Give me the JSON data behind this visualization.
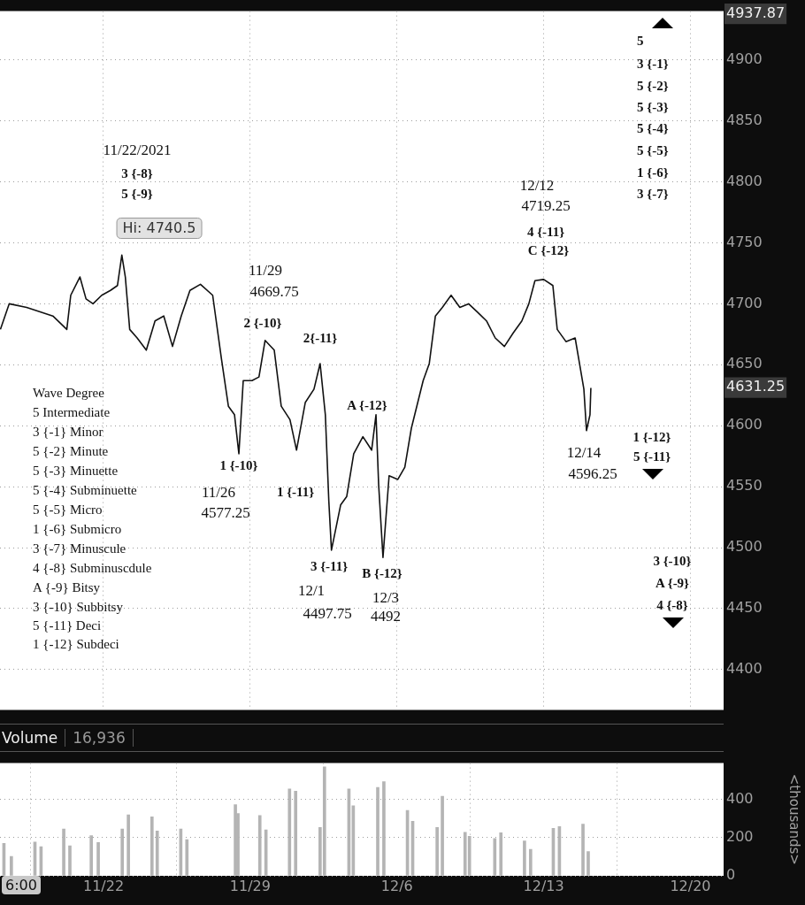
{
  "chart_data": [
    {
      "type": "line",
      "tick_labels": "y",
      "grid": true,
      "legend": false,
      "xlim": [
        "2021-11-17T01:30",
        "2021-12-21T14:00"
      ],
      "xticks": [
        {
          "value": "2021-11-22",
          "label": null
        },
        {
          "value": "2021-11-29",
          "label": null
        },
        {
          "value": "2021-12-06",
          "label": null
        },
        {
          "value": "2021-12-13",
          "label": null
        },
        {
          "value": "2021-12-20",
          "label": null
        }
      ],
      "ylim": [
        4367,
        4940
      ],
      "yticks": [
        4400,
        4450,
        4500,
        4550,
        4600,
        4650,
        4700,
        4750,
        4800,
        4850,
        4900,
        {
          "value": 4937.87,
          "label": "4937.87"
        },
        {
          "value": 4631.25,
          "label": "4631.25"
        }
      ],
      "series": [
        {
          "color": "#111111",
          "x": [
            "2021-11-17T02:00",
            "2021-11-17T12:00",
            "2021-11-18T08:00",
            "2021-11-19T14:00",
            "2021-11-20T06:00",
            "2021-11-20T10:30",
            "2021-11-20T21:00",
            "2021-11-21T04:00",
            "2021-11-21T12:00",
            "2021-11-21T22:00",
            "2021-11-22T08:00",
            "2021-11-22T16:00",
            "2021-11-22T21:00",
            "2021-11-23T01:00",
            "2021-11-23T06:00",
            "2021-11-23T14:30",
            "2021-11-24T01:00",
            "2021-11-24T11:00",
            "2021-11-24T21:00",
            "2021-11-25T07:00",
            "2021-11-25T17:00",
            "2021-11-26T03:00",
            "2021-11-26T15:00",
            "2021-11-27T05:00",
            "2021-11-27T15:00",
            "2021-11-27T23:00",
            "2021-11-28T06:00",
            "2021-11-28T11:00",
            "2021-11-28T16:00",
            "2021-11-29T02:00",
            "2021-11-29T10:00",
            "2021-11-29T17:00",
            "2021-11-30T03:30",
            "2021-11-30T11:30",
            "2021-11-30T21:30",
            "2021-12-01T05:00",
            "2021-12-01T15:00",
            "2021-12-02T01:00",
            "2021-12-02T08:00",
            "2021-12-02T14:00",
            "2021-12-02T18:00",
            "2021-12-02T21:00",
            "2021-12-03T07:30",
            "2021-12-03T14:30",
            "2021-12-03T22:30",
            "2021-12-04T09:00",
            "2021-12-04T19:00",
            "2021-12-05T00:00",
            "2021-12-05T03:00",
            "2021-12-05T08:00",
            "2021-12-05T15:00",
            "2021-12-06T01:00",
            "2021-12-06T09:00",
            "2021-12-06T16:30",
            "2021-12-07T06:00",
            "2021-12-07T13:00",
            "2021-12-07T20:00",
            "2021-12-08T04:00",
            "2021-12-08T14:00",
            "2021-12-09T00:00",
            "2021-12-09T10:00",
            "2021-12-09T20:30",
            "2021-12-10T06:30",
            "2021-12-10T16:30",
            "2021-12-11T03:00",
            "2021-12-11T13:00",
            "2021-12-11T23:00",
            "2021-12-12T07:00",
            "2021-12-12T14:00",
            "2021-12-13T00:00",
            "2021-12-13T10:30",
            "2021-12-13T15:30",
            "2021-12-14T01:30",
            "2021-12-14T12:00",
            "2021-12-14T17:00",
            "2021-12-14T22:00",
            "2021-12-15T01:00",
            "2021-12-15T05:00",
            "2021-12-15T06:00"
          ],
          "values": [
            4679,
            4700,
            4697,
            4690,
            4679,
            4707,
            4722,
            4704,
            4700,
            4707,
            4711,
            4715,
            4740,
            4722,
            4679,
            4672,
            4662,
            4686,
            4690,
            4665,
            4690,
            4711,
            4716,
            4707,
            4655,
            4616,
            4609,
            4577,
            4637,
            4637,
            4640,
            4670,
            4662,
            4616,
            4605,
            4580,
            4619,
            4630,
            4651,
            4609,
            4538,
            4498,
            4535,
            4542,
            4577,
            4591,
            4580,
            4609,
            4552,
            4492,
            4559,
            4556,
            4566,
            4598,
            4637,
            4651,
            4690,
            4697,
            4707,
            4697,
            4700,
            4693,
            4686,
            4672,
            4665,
            4676,
            4686,
            4700,
            4719,
            4720,
            4715,
            4679,
            4669,
            4672,
            4651,
            4630,
            4596,
            4609,
            4631
          ]
        }
      ],
      "annotations": [
        "Wave Degree",
        "5 Intermediate",
        "3 {-1} Minor",
        "5 {-2} Minute",
        "5 {-3} Minuette",
        "5 {-4} Subminuette",
        "5 {-5} Micro",
        "1 {-6} Submicro",
        "3 {-7} Minuscule",
        "4 {-8} Subminuscdule",
        "A {-9} Bitsy",
        "3 {-10} Subbitsy",
        "5 {-11} Deci",
        "1 {-12} Subdeci",
        "11/22/2021",
        "3 {-8}",
        "5 {-9}",
        "Hi: 4740.5",
        "11/29",
        "4669.75",
        "2 {-10}",
        "2{-11}",
        "A {-12}",
        "1 {-10}",
        "11/26",
        "4577.25",
        "1 {-11}",
        "3 {-11}",
        "B {-12}",
        "12/1",
        "4497.75",
        "12/3",
        "4492",
        "12/12",
        "4719.25",
        "4 {-11}",
        "C {-12}",
        "12/14",
        "4596.25",
        "1 {-12}",
        "5 {-11}",
        "5",
        "3 {-1}",
        "5 {-2}",
        "5 {-3}",
        "5 {-4}",
        "5 {-5}",
        "1 {-6}",
        "3 {-7}",
        "3 {-10}",
        "A {-9}",
        "4 {-8}"
      ]
    },
    {
      "type": "bar",
      "title": "Volume",
      "subtitle": "16,936",
      "ylabel": "<thousands>",
      "grid": true,
      "legend": false,
      "xlim": [
        "2021-11-17T01:30",
        "2021-12-21T14:00"
      ],
      "xticks": [
        {
          "value": "2021-11-22",
          "label": "11/22"
        },
        {
          "value": "2021-11-29",
          "label": "11/29"
        },
        {
          "value": "2021-12-06",
          "label": "12/6"
        },
        {
          "value": "2021-12-13",
          "label": "12/13"
        },
        {
          "value": "2021-12-20",
          "label": "12/20"
        }
      ],
      "ylim": [
        0,
        590
      ],
      "yticks": [
        0,
        200,
        400
      ],
      "annotations": [
        "6:00"
      ],
      "series": [
        {
          "color": "#b4b4b4",
          "x": [
            "2021-11-17T06:00",
            "2021-11-17T14:30",
            "2021-11-18T17:30",
            "2021-11-19T00:30",
            "2021-11-20T02:30",
            "2021-11-20T09:30",
            "2021-11-21T10:00",
            "2021-11-21T18:00",
            "2021-11-22T21:30",
            "2021-11-23T04:30",
            "2021-11-24T07:30",
            "2021-11-24T13:30",
            "2021-11-25T16:30",
            "2021-11-25T23:30",
            "2021-11-28T07:00",
            "2021-11-28T10:00",
            "2021-11-29T11:00",
            "2021-11-29T18:00",
            "2021-11-30T21:00",
            "2021-12-01T04:00",
            "2021-12-02T08:00",
            "2021-12-02T13:00",
            "2021-12-03T17:00",
            "2021-12-03T22:00",
            "2021-12-05T02:00",
            "2021-12-05T09:00",
            "2021-12-06T12:00",
            "2021-12-06T18:00",
            "2021-12-07T22:00",
            "2021-12-08T04:00",
            "2021-12-09T06:00",
            "2021-12-09T11:00",
            "2021-12-10T16:00",
            "2021-12-10T23:00",
            "2021-12-12T02:00",
            "2021-12-12T09:00",
            "2021-12-13T11:00",
            "2021-12-13T18:00",
            "2021-12-14T21:00",
            "2021-12-15T03:00"
          ],
          "values": [
            170,
            101,
            177,
            152,
            245,
            157,
            210,
            175,
            245,
            319,
            309,
            235,
            245,
            190,
            372,
            326,
            316,
            240,
            455,
            443,
            253,
            570,
            455,
            367,
            463,
            493,
            342,
            286,
            253,
            417,
            228,
            207,
            195,
            225,
            182,
            139,
            248,
            258,
            271,
            127
          ]
        }
      ]
    }
  ]
}
